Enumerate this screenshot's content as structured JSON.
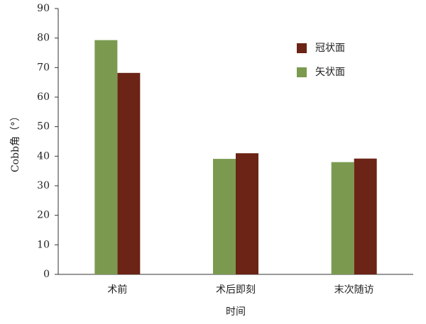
{
  "chart_data": {
    "type": "bar",
    "x_label": "时间",
    "y_label": "Cobb角（°）",
    "categories": [
      "术前",
      "术后即刻",
      "末次随访"
    ],
    "series": [
      {
        "name": "冠状面",
        "color": "#6b2416",
        "values": [
          68.2,
          41.0,
          39.2
        ]
      },
      {
        "name": "矢状面",
        "color": "#7b9a4f",
        "values": [
          79.3,
          39.1,
          38.0
        ]
      }
    ],
    "ylim": [
      0,
      90
    ],
    "yticks": [
      0,
      10,
      20,
      30,
      40,
      50,
      60,
      70,
      80,
      90
    ],
    "legend": "upper right"
  }
}
